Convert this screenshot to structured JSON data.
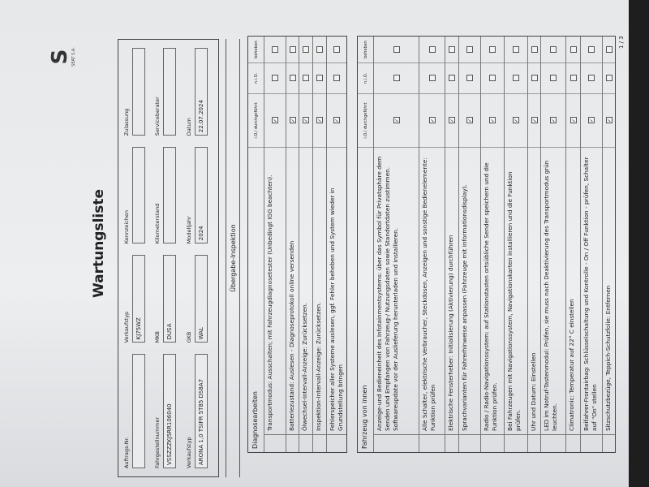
{
  "logo": {
    "brand": "SEAT S.A."
  },
  "title": "Wartungsliste",
  "header_fields": [
    {
      "label": "Auftrags-Nr.",
      "value": ""
    },
    {
      "label": "Verkaufstyp",
      "value": "KJ75WZ"
    },
    {
      "label": "Kennzeichen",
      "value": ""
    },
    {
      "label": "Zulassung",
      "value": ""
    },
    {
      "label": "Fahrgestellnummer",
      "value": "VSSZZZKJ5RR106040"
    },
    {
      "label": "MKB",
      "value": "DUSA"
    },
    {
      "label": "Kilometerstand",
      "value": ""
    },
    {
      "label": "Serviceberater",
      "value": ""
    },
    {
      "label": "Verkaufstyp",
      "value": "ARONA 1,0 TSIFR 5T85 DS8A7"
    },
    {
      "label": "GKB",
      "value": "WAL"
    },
    {
      "label": "Modelljahr",
      "value": "2024"
    },
    {
      "label": "Datum",
      "value": "22.07.2024"
    }
  ],
  "section_title": "Übergabe-Inspektion",
  "columns": {
    "io": "i.O./ durchgeführt",
    "nio": "n.i.O.",
    "behoben": "behoben"
  },
  "diagnose": {
    "title": "Diagnosearbeiten",
    "rows": [
      {
        "text": "Transportmodus: Ausschalten; mit Fahrzeugdiagnosetester (Unbedingt IGG beachten).",
        "io": true,
        "nio": false,
        "behoben": false
      },
      {
        "text": "Batteriezustand: Auslesen - Diagnoseprotokoll online versenden",
        "io": true,
        "nio": false,
        "behoben": false
      },
      {
        "text": "Ölwechsel-Intervall-Anzeige: Zurücksetzen.",
        "io": true,
        "nio": false,
        "behoben": false
      },
      {
        "text": "Inspektion-Intervall-Anzeige: Zurücksetzen.",
        "io": true,
        "nio": false,
        "behoben": false
      },
      {
        "text": "Fehlerspeicher aller Systeme auslesen, ggf. Fehler beheben und System wieder in Grundstellung bringen",
        "io": true,
        "nio": false,
        "behoben": false
      }
    ]
  },
  "innen": {
    "title": "Fahrzeug von innen",
    "rows": [
      {
        "text": "Anzeige-und Bedieneinheit des Infotainmentsystems: über das Symbol für Privatsphäre dem Senden und Empfangen von Fahrzeug-/ Nutzungsdaten sowie Standortdaten zustimmen. Softwareupdate vor der Auslieferung herunterladen und installieren.",
        "io": true,
        "nio": false,
        "behoben": false
      },
      {
        "text": "Alle Schalter, elektrische Verbraucher, Steckdosen, Anzeigen und sonstige Bedienelemente: Funktion prüfen",
        "io": true,
        "nio": false,
        "behoben": false
      },
      {
        "text": "Elektrische Fensterheber: Initialisierung (Aktivierung) durchführen",
        "io": true,
        "nio": false,
        "behoben": false
      },
      {
        "text": "Sprachvarianten für Fahrerhinweise anpassen (Fahrzeuge mit Informationsdisplay).",
        "io": true,
        "nio": false,
        "behoben": false
      },
      {
        "text": "Radio / Radio-Navigationssystem: auf Stationstasten ortsübliche Sender speichern und die Funktion prüfen.",
        "io": true,
        "nio": false,
        "behoben": false
      },
      {
        "text": "Bei Fahrzeugen mit Navigationssystem, Navigationskarten installieren und die Funktion prüfen.",
        "io": true,
        "nio": false,
        "behoben": false
      },
      {
        "text": "Uhr und Datum: Einstellen",
        "io": true,
        "nio": false,
        "behoben": false
      },
      {
        "text": "LED im Notruf-Tastenmodul: Prüfen, sie muss nach Deaktivierung des Transportmodus grün leuchten.",
        "io": true,
        "nio": false,
        "behoben": false
      },
      {
        "text": "Climatronic: Temperatur auf 22° C einstellen",
        "io": true,
        "nio": false,
        "behoben": false
      },
      {
        "text": "Beifahrer-Frontairbag: Schlüsselschaltung und Kontrolle - On / Off Funktion - prüfen, Schalter auf \"On\" stellen",
        "io": true,
        "nio": false,
        "behoben": false
      },
      {
        "text": "Sitzschutzbezüge, Teppich-Schutzfolie: Entfernen",
        "io": true,
        "nio": false,
        "behoben": false
      }
    ]
  },
  "page_number": "1 / 3"
}
